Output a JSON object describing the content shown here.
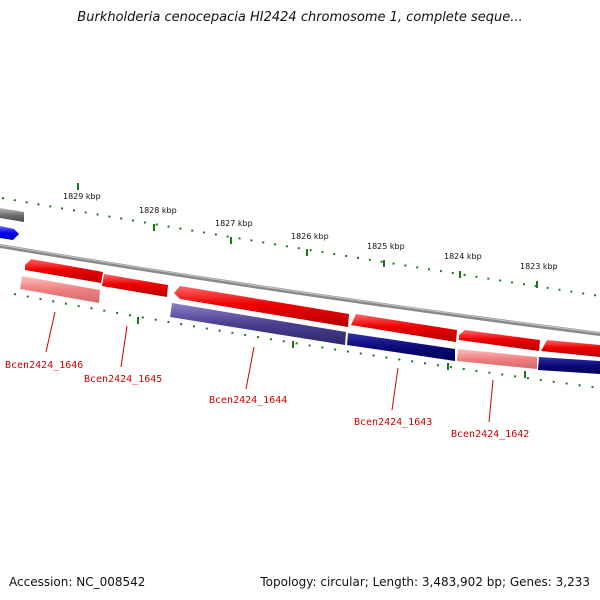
{
  "title": "Burkholderia cenocepacia HI2424 chromosome 1, complete seque...",
  "accession": "Accession: NC_008542",
  "summary": "Topology: circular; Length: 3,483,902 bp; Genes: 3,233",
  "colors": {
    "forward_gene": "#ee0000",
    "forward_gene_light": "#f08080",
    "reverse_gene_dark": "#0a0a7a",
    "reverse_gene_medium": "#4a3f8f",
    "other_feature": "#0000ee",
    "rrna_gray": "#707070",
    "backbone": "#808080",
    "ticks": "#1a7a1a",
    "labels": "#cc0000"
  },
  "scale_labels": [
    "1829 kbp",
    "1828 kbp",
    "1827 kbp",
    "1826 kbp",
    "1825 kbp",
    "1824 kbp",
    "1823 kbp"
  ],
  "gene_labels": [
    "Bcen2424_1646",
    "Bcen2424_1645",
    "Bcen2424_1644",
    "Bcen2424_1643",
    "Bcen2424_1642"
  ]
}
